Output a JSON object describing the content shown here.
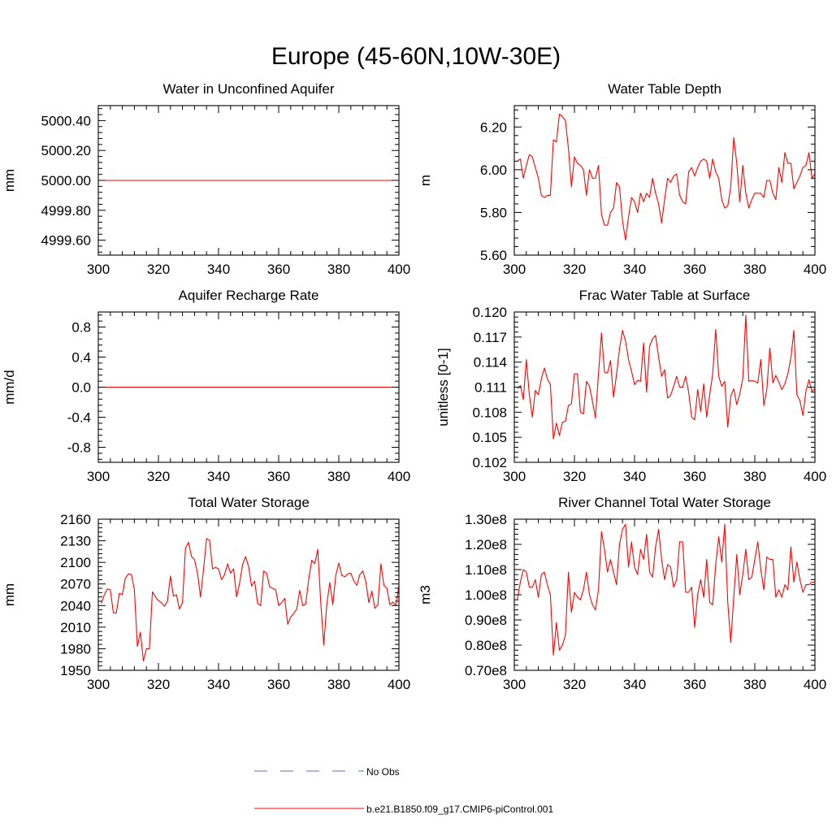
{
  "figure": {
    "title": "Europe (45-60N,10W-30E)",
    "legend": [
      {
        "label": "No Obs",
        "style": "dashed",
        "color": "#5b6fb5"
      },
      {
        "label": "b.e21.B1850.f09_g17.CMIP6-piControl.001",
        "style": "solid",
        "color": "#ff0000"
      }
    ]
  },
  "chart_data": [
    {
      "type": "line",
      "title": "Water in Unconfined Aquifer",
      "xlabel": "",
      "ylabel": "mm",
      "xlim": [
        300,
        400
      ],
      "ylim": [
        4999.5,
        5000.5
      ],
      "xticks": [
        300,
        320,
        340,
        360,
        380,
        400
      ],
      "xtick_labels": [
        "300",
        "320",
        "340",
        "360",
        "380",
        "400"
      ],
      "yticks": [
        4999.6,
        4999.8,
        5000.0,
        5000.2,
        5000.4
      ],
      "ytick_labels": [
        "4999.60",
        "4999.80",
        "5000.00",
        "5000.20",
        "5000.40"
      ],
      "series": [
        {
          "name": "b.e21.B1850.f09_g17.CMIP6-piControl.001",
          "color": "#ff0000",
          "x": [
            300,
            400
          ],
          "values": [
            5000.0,
            5000.0
          ]
        }
      ]
    },
    {
      "type": "line",
      "title": "Water Table Depth",
      "xlabel": "",
      "ylabel": "m",
      "xlim": [
        300,
        400
      ],
      "ylim": [
        5.6,
        6.3
      ],
      "xticks": [
        300,
        320,
        340,
        360,
        380,
        400
      ],
      "xtick_labels": [
        "300",
        "320",
        "340",
        "360",
        "380",
        "400"
      ],
      "yticks": [
        5.6,
        5.8,
        6.0,
        6.2
      ],
      "ytick_labels": [
        "5.60",
        "5.80",
        "6.00",
        "6.20"
      ],
      "series": [
        {
          "name": "b.e21.B1850.f09_g17.CMIP6-piControl.001",
          "color": "#ff0000",
          "x_start": 301,
          "x_step": 1,
          "values": [
            6.04,
            6.05,
            5.96,
            6.02,
            6.07,
            6.06,
            6.01,
            5.96,
            5.88,
            5.87,
            5.88,
            5.88,
            6.14,
            6.13,
            6.26,
            6.25,
            6.23,
            6.1,
            5.92,
            6.06,
            6.03,
            6.02,
            6.0,
            5.88,
            6.0,
            5.96,
            5.96,
            6.02,
            5.79,
            5.74,
            5.74,
            5.8,
            5.82,
            5.94,
            5.92,
            5.76,
            5.67,
            5.78,
            5.87,
            5.85,
            5.8,
            5.89,
            5.85,
            5.89,
            5.87,
            5.96,
            5.89,
            5.84,
            5.75,
            5.86,
            5.96,
            5.94,
            5.97,
            5.98,
            5.88,
            5.85,
            5.84,
            5.99,
            6.01,
            5.97,
            6.01,
            6.04,
            6.05,
            6.04,
            5.96,
            6.05,
            5.99,
            5.96,
            5.86,
            5.82,
            5.83,
            5.92,
            6.15,
            6.03,
            5.85,
            6.02,
            5.89,
            5.82,
            5.86,
            5.89,
            5.89,
            5.89,
            5.87,
            5.95,
            5.95,
            5.89,
            5.86,
            6.01,
            5.94,
            6.08,
            6.03,
            6.03,
            5.91,
            5.94,
            5.97,
            6.01,
            6.02,
            6.08,
            5.96,
            5.98
          ]
        }
      ]
    },
    {
      "type": "line",
      "title": "Aquifer Recharge Rate",
      "xlabel": "",
      "ylabel": "mm/d",
      "xlim": [
        300,
        400
      ],
      "ylim": [
        -1.0,
        1.0
      ],
      "xticks": [
        300,
        320,
        340,
        360,
        380,
        400
      ],
      "xtick_labels": [
        "300",
        "320",
        "340",
        "360",
        "380",
        "400"
      ],
      "yticks": [
        -0.8,
        -0.4,
        0.0,
        0.4,
        0.8
      ],
      "ytick_labels": [
        "-0.8",
        "-0.4",
        "0.0",
        "0.4",
        "0.8"
      ],
      "series": [
        {
          "name": "b.e21.B1850.f09_g17.CMIP6-piControl.001",
          "color": "#ff0000",
          "x": [
            300,
            400
          ],
          "values": [
            0.0,
            0.0
          ]
        }
      ]
    },
    {
      "type": "line",
      "title": "Frac Water Table at Surface",
      "xlabel": "",
      "ylabel": "unitless [0-1]",
      "xlim": [
        300,
        400
      ],
      "ylim": [
        0.102,
        0.12
      ],
      "xticks": [
        300,
        320,
        340,
        360,
        380,
        400
      ],
      "xtick_labels": [
        "300",
        "320",
        "340",
        "360",
        "380",
        "400"
      ],
      "yticks": [
        0.102,
        0.105,
        0.108,
        0.111,
        0.114,
        0.117,
        0.12
      ],
      "ytick_labels": [
        "0.102",
        "0.105",
        "0.108",
        "0.111",
        "0.114",
        "0.117",
        "0.120"
      ],
      "series": [
        {
          "name": "b.e21.B1850.f09_g17.CMIP6-piControl.001",
          "color": "#ff0000",
          "x_start": 301,
          "x_step": 1,
          "values": [
            0.1108,
            0.1112,
            0.1095,
            0.1143,
            0.1101,
            0.1074,
            0.1106,
            0.1101,
            0.112,
            0.1133,
            0.112,
            0.1113,
            0.1048,
            0.1067,
            0.1052,
            0.1068,
            0.1069,
            0.1088,
            0.109,
            0.1126,
            0.1126,
            0.108,
            0.1078,
            0.1117,
            0.1111,
            0.1093,
            0.1073,
            0.1126,
            0.1175,
            0.1128,
            0.1127,
            0.1142,
            0.1098,
            0.1125,
            0.1156,
            0.1178,
            0.1165,
            0.1143,
            0.1129,
            0.1113,
            0.1118,
            0.1117,
            0.1163,
            0.1104,
            0.1159,
            0.1168,
            0.1172,
            0.1146,
            0.1123,
            0.1131,
            0.1097,
            0.11,
            0.1111,
            0.1123,
            0.111,
            0.111,
            0.1123,
            0.1104,
            0.1074,
            0.1071,
            0.1107,
            0.1081,
            0.1114,
            0.1074,
            0.1101,
            0.1126,
            0.1179,
            0.1123,
            0.1111,
            0.1117,
            0.1062,
            0.1099,
            0.1108,
            0.1089,
            0.1102,
            0.112,
            0.1196,
            0.1117,
            0.1118,
            0.1117,
            0.1115,
            0.1143,
            0.1088,
            0.1107,
            0.1157,
            0.1115,
            0.1124,
            0.1116,
            0.1107,
            0.1114,
            0.1126,
            0.1145,
            0.1178,
            0.1101,
            0.1094,
            0.1076,
            0.1105,
            0.1119,
            0.1105,
            0.1108
          ]
        }
      ]
    },
    {
      "type": "line",
      "title": "Total Water Storage",
      "xlabel": "",
      "ylabel": "mm",
      "xlim": [
        300,
        400
      ],
      "ylim": [
        1950,
        2160
      ],
      "xticks": [
        300,
        320,
        340,
        360,
        380,
        400
      ],
      "xtick_labels": [
        "300",
        "320",
        "340",
        "360",
        "380",
        "400"
      ],
      "yticks": [
        1950,
        1980,
        2010,
        2040,
        2070,
        2100,
        2130,
        2160
      ],
      "ytick_labels": [
        "1950",
        "1980",
        "2010",
        "2040",
        "2070",
        "2100",
        "2130",
        "2160"
      ],
      "series": [
        {
          "name": "b.e21.B1850.f09_g17.CMIP6-piControl.001",
          "color": "#ff0000",
          "x_start": 301,
          "x_step": 1,
          "values": [
            2043,
            2055,
            2063,
            2062,
            2030,
            2030,
            2057,
            2055,
            2078,
            2084,
            2083,
            2062,
            1983,
            2003,
            1963,
            1980,
            1980,
            2059,
            2052,
            2047,
            2044,
            2039,
            2046,
            2081,
            2053,
            2055,
            2035,
            2044,
            2120,
            2128,
            2108,
            2104,
            2085,
            2052,
            2090,
            2133,
            2131,
            2091,
            2093,
            2091,
            2076,
            2083,
            2098,
            2085,
            2091,
            2052,
            2071,
            2097,
            2108,
            2094,
            2067,
            2074,
            2043,
            2040,
            2088,
            2085,
            2066,
            2064,
            2062,
            2040,
            2044,
            2050,
            2014,
            2024,
            2029,
            2035,
            2061,
            2040,
            2042,
            2077,
            2103,
            2098,
            2118,
            2044,
            1985,
            2041,
            2072,
            2041,
            2082,
            2099,
            2082,
            2080,
            2084,
            2085,
            2074,
            2068,
            2083,
            2088,
            2073,
            2044,
            2060,
            2036,
            2041,
            2098,
            2068,
            2064,
            2041,
            2045,
            2040,
            2068
          ]
        }
      ]
    },
    {
      "type": "line",
      "title": "River Channel Total Water Storage",
      "xlabel": "",
      "ylabel": "m3",
      "xlim": [
        300,
        400
      ],
      "ylim": [
        70000000,
        130000000
      ],
      "xticks": [
        300,
        320,
        340,
        360,
        380,
        400
      ],
      "xtick_labels": [
        "300",
        "320",
        "340",
        "360",
        "380",
        "400"
      ],
      "yticks": [
        70000000,
        80000000,
        90000000,
        100000000,
        110000000,
        120000000,
        130000000
      ],
      "ytick_labels": [
        "0.70e8",
        "0.80e8",
        "0.90e8",
        "1.00e8",
        "1.10e8",
        "1.20e8",
        "1.30e8"
      ],
      "series": [
        {
          "name": "b.e21.B1850.f09_g17.CMIP6-piControl.001",
          "color": "#ff0000",
          "x_start": 301,
          "x_step": 1,
          "values": [
            98000000,
            105000000,
            110000000,
            109000000,
            103000000,
            103000000,
            106000000,
            99000000,
            108000000,
            109000000,
            104000000,
            100000000,
            76000000,
            89000000,
            78000000,
            80000000,
            84000000,
            109000000,
            93000000,
            101000000,
            99000000,
            98000000,
            102000000,
            109000000,
            100000000,
            96000000,
            94000000,
            102000000,
            125000000,
            118000000,
            109000000,
            114000000,
            109000000,
            104000000,
            120000000,
            126000000,
            128000000,
            111000000,
            121000000,
            111000000,
            108000000,
            118000000,
            114000000,
            124000000,
            109000000,
            107000000,
            119000000,
            126000000,
            114000000,
            106000000,
            112000000,
            111000000,
            103000000,
            106000000,
            121000000,
            121000000,
            101000000,
            101000000,
            103000000,
            87000000,
            100000000,
            106000000,
            99000000,
            114000000,
            97000000,
            96000000,
            112000000,
            123000000,
            113000000,
            128000000,
            97000000,
            81000000,
            99000000,
            116000000,
            100000000,
            108000000,
            118000000,
            106000000,
            107000000,
            114000000,
            121000000,
            110000000,
            102000000,
            115000000,
            114000000,
            114000000,
            99000000,
            102000000,
            99000000,
            104000000,
            102000000,
            119000000,
            105000000,
            113000000,
            106000000,
            101000000,
            104000000,
            104000000,
            105000000,
            105000000
          ]
        }
      ]
    }
  ]
}
